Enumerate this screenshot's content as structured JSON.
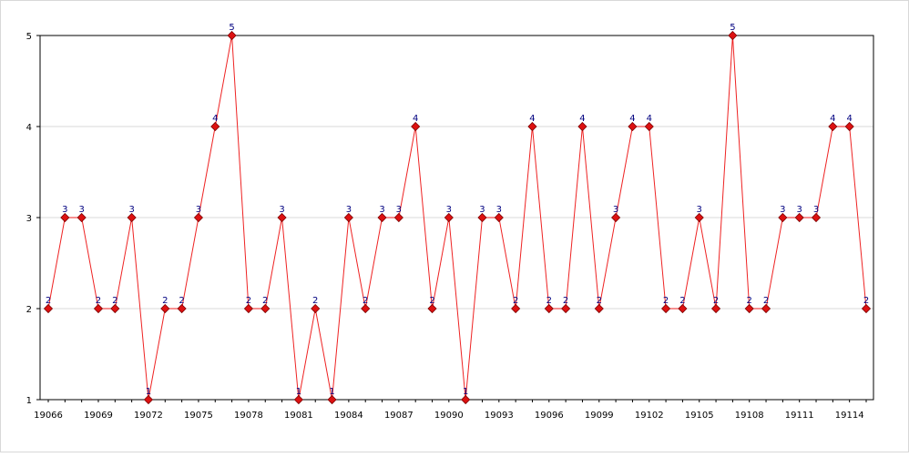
{
  "chart_data": {
    "type": "line",
    "title": "",
    "xlabel": "",
    "ylabel": "",
    "x": [
      19066,
      19067,
      19068,
      19069,
      19070,
      19071,
      19072,
      19073,
      19074,
      19075,
      19076,
      19077,
      19078,
      19079,
      19080,
      19081,
      19082,
      19083,
      19084,
      19085,
      19086,
      19087,
      19088,
      19089,
      19090,
      19091,
      19092,
      19093,
      19094,
      19095,
      19096,
      19097,
      19098,
      19099,
      19100,
      19101,
      19102,
      19103,
      19104,
      19105,
      19106,
      19107,
      19108,
      19109,
      19110,
      19111,
      19112,
      19113,
      19114,
      19115
    ],
    "x_tick_labels": [
      "19066",
      "19069",
      "19072",
      "19075",
      "19078",
      "19081",
      "19084",
      "19087",
      "19090",
      "19093",
      "19096",
      "19099",
      "19102",
      "19105",
      "19108",
      "19111",
      "19114"
    ],
    "y_tick_labels": [
      "1",
      "2",
      "3",
      "4",
      "5"
    ],
    "ylim": [
      1,
      5
    ],
    "grid": "horizontal",
    "legend": "none",
    "series": [
      {
        "values": [
          2,
          3,
          3,
          2,
          2,
          3,
          1,
          2,
          2,
          3,
          4,
          5,
          2,
          2,
          3,
          1,
          2,
          1,
          3,
          2,
          3,
          3,
          4,
          2,
          3,
          1,
          3,
          3,
          2,
          4,
          2,
          2,
          4,
          2,
          3,
          4,
          4,
          2,
          2,
          3,
          2,
          5,
          2,
          2,
          3,
          3,
          3,
          4,
          4,
          2
        ]
      }
    ],
    "colors": {
      "line": "#ee2222",
      "marker_fill": "#dd1111",
      "marker_stroke": "#7a0000",
      "value_label": "#000080",
      "grid": "#d9d9d9",
      "axis": "#000000"
    },
    "marker": "diamond",
    "data_labels": true
  }
}
